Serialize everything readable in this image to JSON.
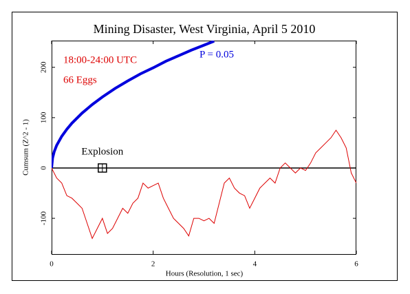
{
  "chart_data": {
    "type": "line",
    "title": "Mining Disaster, West Virginia, April 5 2010",
    "subtitle": "18:00-24:00 UTC",
    "annotations": [
      {
        "text": "66 Eggs"
      },
      {
        "text": "Explosion",
        "x": 1,
        "y": 0
      }
    ],
    "x_label": "Hours (Resolution, 1 sec)",
    "y_label": "Cumsum (Z^2 - 1)",
    "xlim": [
      0,
      6
    ],
    "xticks": [
      0,
      2,
      4,
      6
    ],
    "ylim": [
      -171,
      253
    ],
    "yticks": [
      -100,
      0,
      100,
      200
    ],
    "reference_line": 0,
    "series": [
      {
        "name": "P = 0.05",
        "color": "#0000dd",
        "x": [
          0,
          0.02,
          0.05,
          0.1,
          0.2,
          0.3,
          0.4,
          0.6,
          0.8,
          1,
          1.25,
          1.5,
          1.75,
          2,
          2.25,
          2.5,
          2.75,
          3,
          3.2
        ],
        "values": [
          0,
          20,
          32,
          45,
          63,
          77,
          89,
          109,
          126,
          141,
          158,
          173,
          187,
          199,
          212,
          223,
          234,
          244,
          252
        ]
      },
      {
        "name": "Cumsum",
        "color": "#dd0000",
        "x": [
          0,
          0.1,
          0.2,
          0.3,
          0.4,
          0.5,
          0.6,
          0.7,
          0.8,
          0.9,
          1.0,
          1.1,
          1.2,
          1.3,
          1.4,
          1.5,
          1.6,
          1.7,
          1.8,
          1.9,
          2.0,
          2.1,
          2.2,
          2.3,
          2.4,
          2.5,
          2.6,
          2.7,
          2.8,
          2.9,
          3.0,
          3.1,
          3.2,
          3.3,
          3.4,
          3.5,
          3.6,
          3.7,
          3.8,
          3.9,
          4.0,
          4.1,
          4.2,
          4.3,
          4.4,
          4.5,
          4.6,
          4.7,
          4.8,
          4.9,
          5.0,
          5.1,
          5.2,
          5.3,
          5.4,
          5.5,
          5.6,
          5.7,
          5.8,
          5.9,
          6.0
        ],
        "values": [
          0,
          -20,
          -30,
          -55,
          -60,
          -70,
          -80,
          -110,
          -140,
          -120,
          -100,
          -130,
          -120,
          -100,
          -80,
          -90,
          -70,
          -60,
          -30,
          -40,
          -35,
          -30,
          -60,
          -80,
          -100,
          -110,
          -120,
          -135,
          -100,
          -100,
          -105,
          -100,
          -110,
          -70,
          -30,
          -20,
          -40,
          -50,
          -55,
          -80,
          -60,
          -40,
          -30,
          -20,
          -30,
          0,
          10,
          0,
          -10,
          0,
          -5,
          10,
          30,
          40,
          50,
          60,
          75,
          60,
          40,
          -10,
          -30
        ]
      }
    ]
  }
}
